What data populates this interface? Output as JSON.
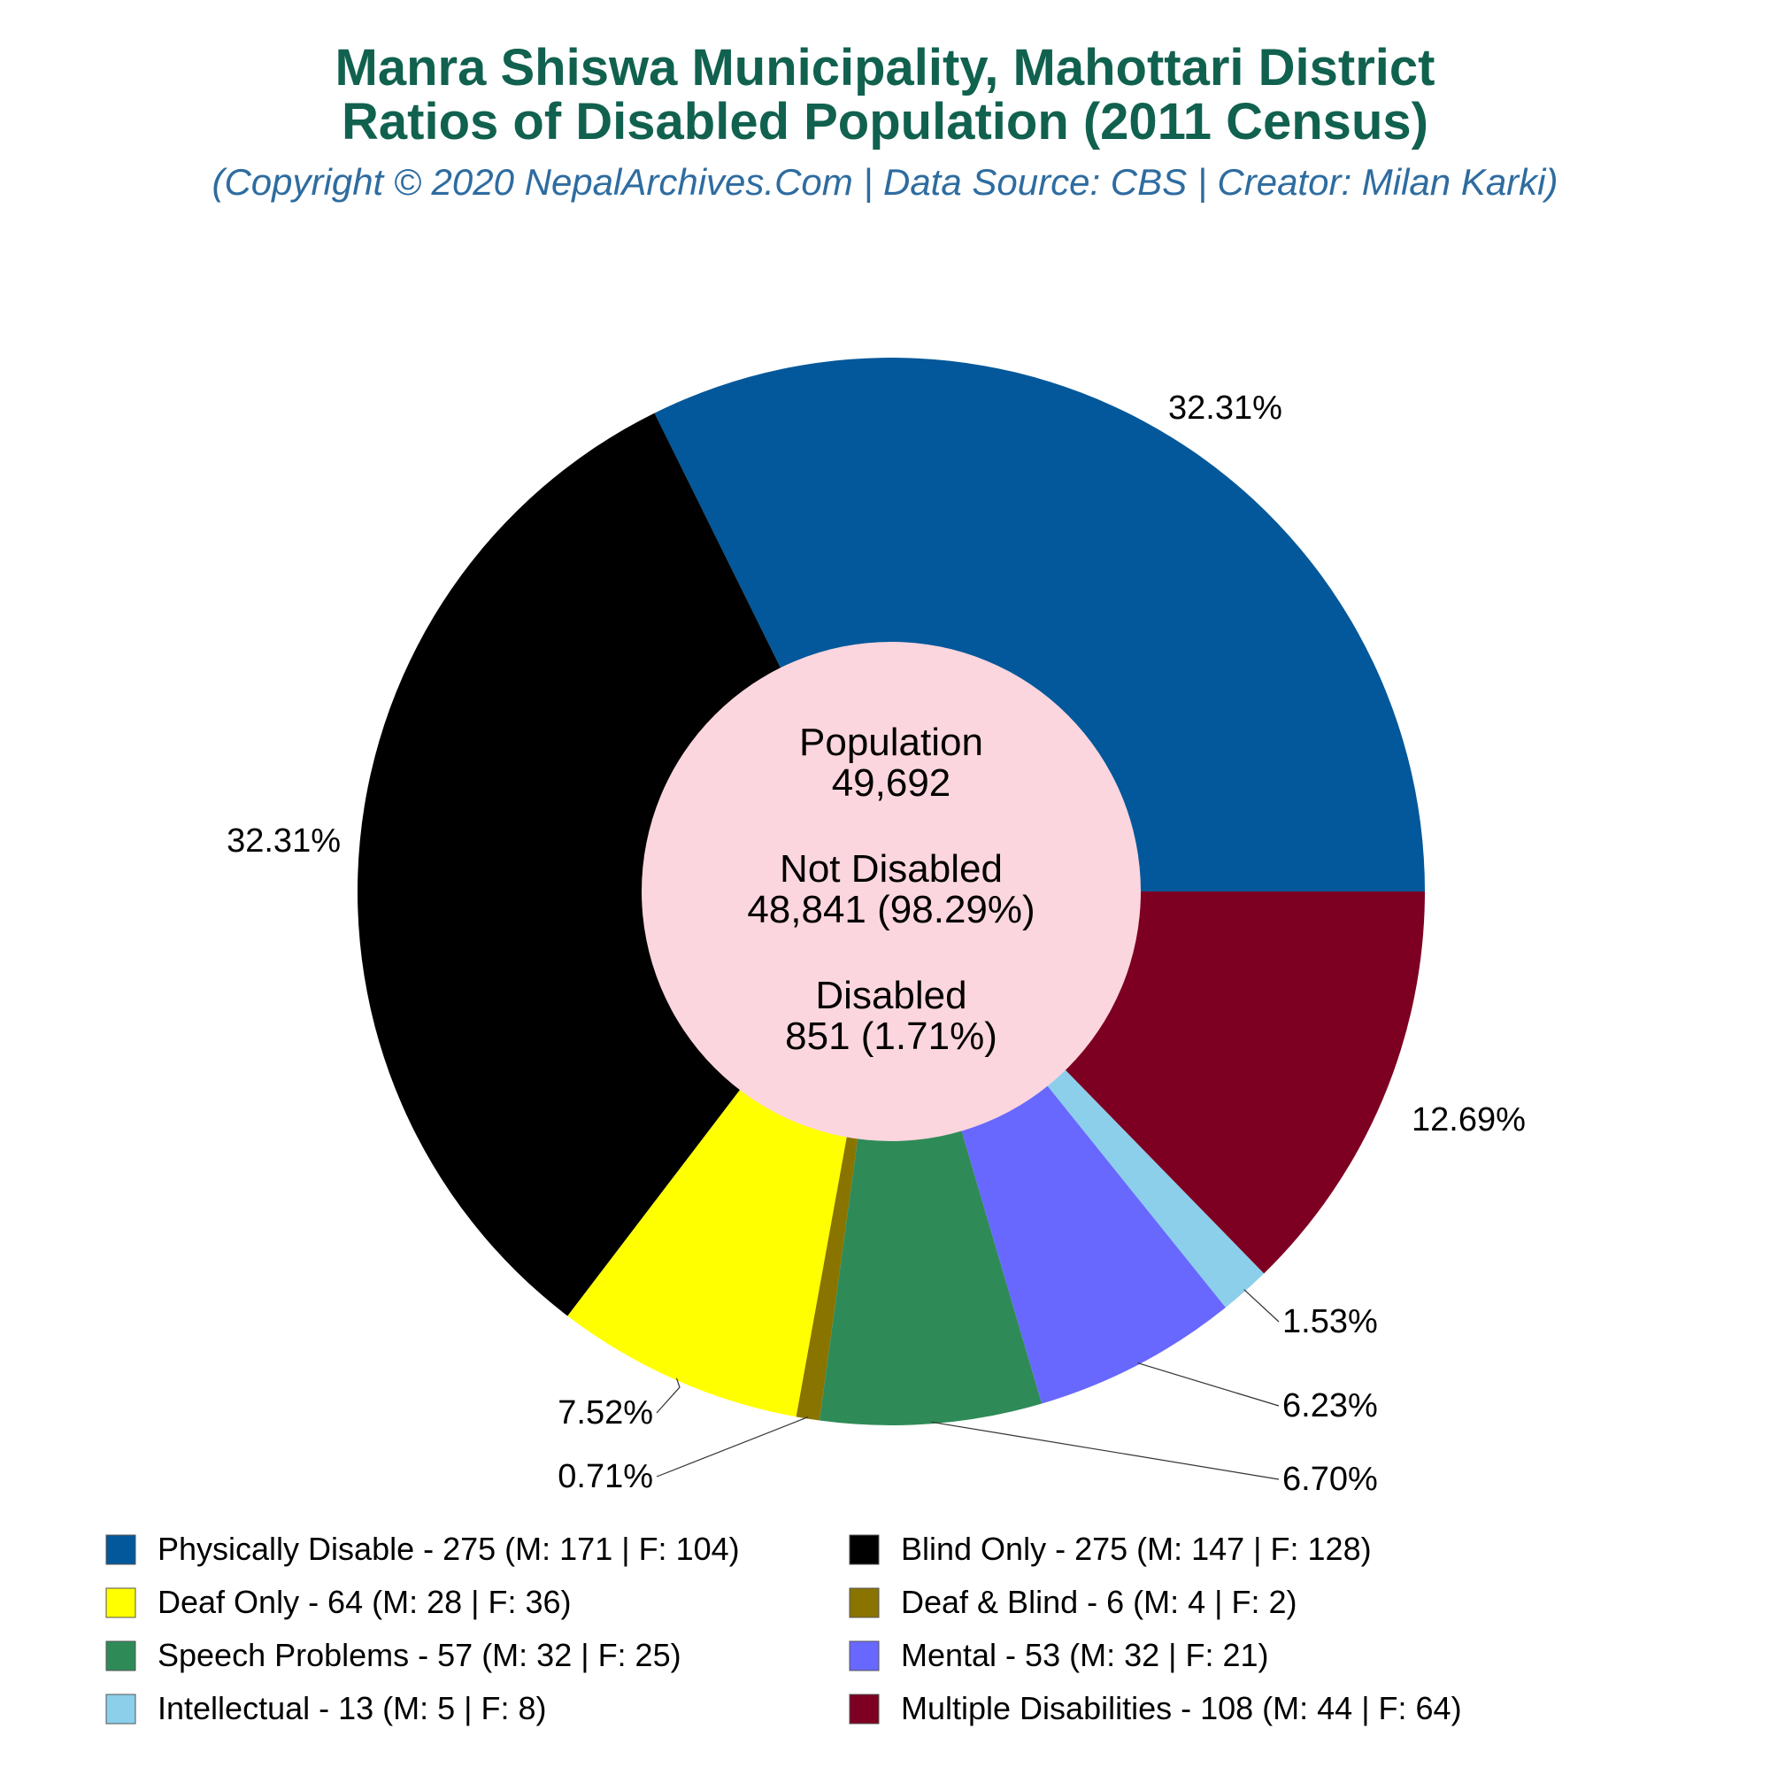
{
  "colors": {
    "title": "#11614f",
    "subtitle": "#2e6ca0",
    "center_fill": "#fcd6de"
  },
  "header": {
    "title_line1": "Manra Shiswa Municipality, Mahottari District",
    "title_line2": "Ratios of Disabled Population (2011 Census)",
    "subtitle": "(Copyright © 2020 NepalArchives.Com | Data Source: CBS | Creator: Milan Karki)"
  },
  "center": {
    "population_label": "Population",
    "population_value": "49,692",
    "not_disabled_label": "Not Disabled",
    "not_disabled_value": "48,841 (98.29%)",
    "disabled_label": "Disabled",
    "disabled_value": "851 (1.71%)"
  },
  "chart_data": {
    "type": "pie",
    "title": "Manra Shiswa Municipality, Mahottari District Ratios of Disabled Population (2011 Census)",
    "start": "3 o'clock, counter-clockwise",
    "legend_position": "bottom",
    "series": [
      {
        "name": "Physically Disable",
        "value": 275,
        "percent": "32.31%",
        "male": 171,
        "female": 104,
        "color": "#02589a",
        "legend": "Physically Disable - 275 (M: 171 | F: 104)"
      },
      {
        "name": "Blind Only",
        "value": 275,
        "percent": "32.31%",
        "male": 147,
        "female": 128,
        "color": "#000000",
        "legend": "Blind Only - 275 (M: 147 | F: 128)"
      },
      {
        "name": "Deaf Only",
        "value": 64,
        "percent": "7.52%",
        "male": 28,
        "female": 36,
        "color": "#ffff00",
        "legend": "Deaf Only - 64 (M: 28 | F: 36)"
      },
      {
        "name": "Deaf & Blind",
        "value": 6,
        "percent": "0.71%",
        "male": 4,
        "female": 2,
        "color": "#8a7400",
        "legend": "Deaf & Blind - 6 (M: 4 | F: 2)"
      },
      {
        "name": "Speech Problems",
        "value": 57,
        "percent": "6.70%",
        "male": 32,
        "female": 25,
        "color": "#2e8b57",
        "legend": "Speech Problems - 57 (M: 32 | F: 25)"
      },
      {
        "name": "Mental",
        "value": 53,
        "percent": "6.23%",
        "male": 32,
        "female": 21,
        "color": "#6868ff",
        "legend": "Mental - 53 (M: 32 | F: 21)"
      },
      {
        "name": "Intellectual",
        "value": 13,
        "percent": "1.53%",
        "male": 5,
        "female": 8,
        "color": "#8bcfeb",
        "legend": "Intellectual - 13 (M: 5 | F: 8)"
      },
      {
        "name": "Multiple Disabilities",
        "value": 108,
        "percent": "12.69%",
        "male": 44,
        "female": 64,
        "color": "#7d0022",
        "legend": "Multiple Disabilities - 108 (M: 44 | F: 64)"
      }
    ]
  }
}
